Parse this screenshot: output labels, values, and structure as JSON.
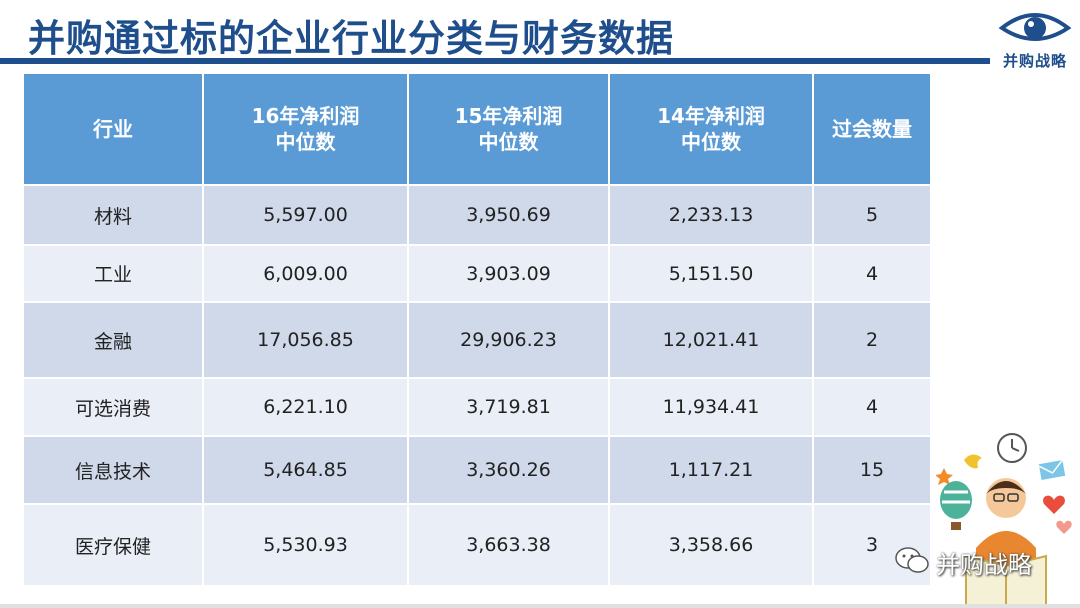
{
  "slide": {
    "title": "并购通过标的企业行业分类与财务数据",
    "logo_text": "并购战略"
  },
  "table": {
    "headers": [
      "行业",
      "16年净利润\n中位数",
      "15年净利润\n中位数",
      "14年净利润\n中位数",
      "过会数量"
    ],
    "header_lines": [
      [
        "行业"
      ],
      [
        "16年净利润",
        "中位数"
      ],
      [
        "15年净利润",
        "中位数"
      ],
      [
        "14年净利润",
        "中位数"
      ],
      [
        "过会数量"
      ]
    ],
    "rows": [
      [
        "材料",
        "5,597.00",
        "3,950.69",
        "2,233.13",
        "5"
      ],
      [
        "工业",
        "6,009.00",
        "3,903.09",
        "5,151.50",
        "4"
      ],
      [
        "金融",
        "17,056.85",
        "29,906.23",
        "12,021.41",
        "2"
      ],
      [
        "可选消费",
        "6,221.10",
        "3,719.81",
        "11,934.41",
        "4"
      ],
      [
        "信息技术",
        "5,464.85",
        "3,360.26",
        "1,117.21",
        "15"
      ],
      [
        "医疗保健",
        "5,530.93",
        "3,663.38",
        "3,358.66",
        "3"
      ]
    ]
  },
  "watermark": {
    "text": "并购战略",
    "icon": "wechat-icon"
  },
  "colors": {
    "title": "#1f4e8c",
    "header_bg": "#5b9bd5",
    "row_dark": "#cfd9ea",
    "row_light": "#e9eef7"
  }
}
